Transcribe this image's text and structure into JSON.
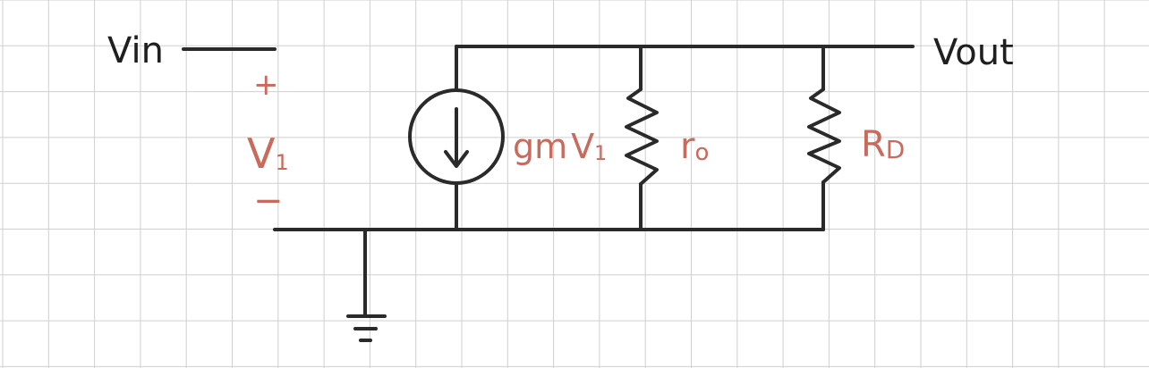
{
  "colors": {
    "grid": "#cfcfcf",
    "ink": "#2a2a2a",
    "annotation": "#c96a5d",
    "background": "#ffffff"
  },
  "labels": {
    "vin": "Vin",
    "vout": "Vout",
    "plus": "+",
    "minus": "−",
    "v1": "V",
    "v1_sub": "1",
    "gm": "gm",
    "gm_v": "V",
    "gm_sub": "1",
    "ro": "r",
    "ro_sub": "o",
    "rd": "R",
    "rd_sub": "D"
  }
}
